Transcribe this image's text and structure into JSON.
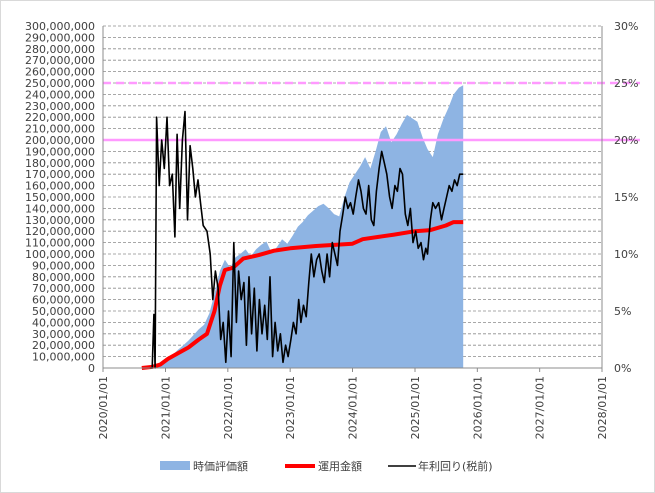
{
  "chart_data": {
    "type": "area",
    "colors": {
      "market_value": "#8eb4e3",
      "invested": "#ff0000",
      "annual_yield": "#000000",
      "reference": "#ff99ff",
      "grid": "#8c8c8c"
    },
    "x_axis": {
      "type": "date",
      "range": [
        "2020-01-01",
        "2028-01-01"
      ],
      "ticks": [
        "2020/01/01",
        "2021/01/01",
        "2022/01/01",
        "2023/01/01",
        "2024/01/01",
        "2025/01/01",
        "2026/01/01",
        "2027/01/01",
        "2028/01/01"
      ]
    },
    "y_left": {
      "range": [
        0,
        300000000
      ],
      "ticks": [
        "0",
        "10,000,000",
        "20,000,000",
        "30,000,000",
        "40,000,000",
        "50,000,000",
        "60,000,000",
        "70,000,000",
        "80,000,000",
        "90,000,000",
        "100,000,000",
        "110,000,000",
        "120,000,000",
        "130,000,000",
        "140,000,000",
        "150,000,000",
        "160,000,000",
        "170,000,000",
        "180,000,000",
        "190,000,000",
        "200,000,000",
        "210,000,000",
        "220,000,000",
        "230,000,000",
        "240,000,000",
        "250,000,000",
        "260,000,000",
        "270,000,000",
        "280,000,000",
        "290,000,000",
        "300,000,000"
      ]
    },
    "y_right": {
      "range": [
        0,
        30
      ],
      "ticks": [
        "0%",
        "5%",
        "10%",
        "15%",
        "20%",
        "25%",
        "30%"
      ]
    },
    "grid": "dashed horizontal",
    "legend_position": "bottom",
    "reference_lines": [
      {
        "axis": "right",
        "value": 25,
        "style": "dashed"
      },
      {
        "axis": "right",
        "value": 20,
        "style": "solid"
      }
    ],
    "series": [
      {
        "name": "時価評価額",
        "kind": "area",
        "axis": "left",
        "points": [
          [
            "2020-09-15",
            0
          ],
          [
            "2020-10-15",
            1000000
          ],
          [
            "2020-11-15",
            3000000
          ],
          [
            "2020-12-15",
            6000000
          ],
          [
            "2021-01-15",
            9000000
          ],
          [
            "2021-02-15",
            12000000
          ],
          [
            "2021-03-15",
            16000000
          ],
          [
            "2021-04-15",
            20000000
          ],
          [
            "2021-05-15",
            24000000
          ],
          [
            "2021-06-15",
            29000000
          ],
          [
            "2021-07-15",
            34000000
          ],
          [
            "2021-08-15",
            38000000
          ],
          [
            "2021-09-15",
            48000000
          ],
          [
            "2021-10-15",
            65000000
          ],
          [
            "2021-11-15",
            85000000
          ],
          [
            "2021-12-15",
            95000000
          ],
          [
            "2022-01-15",
            88000000
          ],
          [
            "2022-02-15",
            97000000
          ],
          [
            "2022-03-15",
            100000000
          ],
          [
            "2022-04-15",
            104000000
          ],
          [
            "2022-05-15",
            98000000
          ],
          [
            "2022-06-15",
            104000000
          ],
          [
            "2022-07-15",
            108000000
          ],
          [
            "2022-08-15",
            111000000
          ],
          [
            "2022-09-15",
            101000000
          ],
          [
            "2022-10-15",
            106000000
          ],
          [
            "2022-11-15",
            113000000
          ],
          [
            "2022-12-15",
            109000000
          ],
          [
            "2023-01-15",
            116000000
          ],
          [
            "2023-02-15",
            124000000
          ],
          [
            "2023-03-15",
            128000000
          ],
          [
            "2023-04-15",
            134000000
          ],
          [
            "2023-05-15",
            138000000
          ],
          [
            "2023-06-15",
            142000000
          ],
          [
            "2023-07-15",
            144000000
          ],
          [
            "2023-08-15",
            140000000
          ],
          [
            "2023-09-15",
            135000000
          ],
          [
            "2023-10-15",
            133000000
          ],
          [
            "2023-11-15",
            150000000
          ],
          [
            "2023-12-15",
            163000000
          ],
          [
            "2024-01-15",
            170000000
          ],
          [
            "2024-02-15",
            177000000
          ],
          [
            "2024-03-15",
            185000000
          ],
          [
            "2024-04-15",
            175000000
          ],
          [
            "2024-05-15",
            190000000
          ],
          [
            "2024-06-15",
            207000000
          ],
          [
            "2024-07-15",
            212000000
          ],
          [
            "2024-08-15",
            198000000
          ],
          [
            "2024-09-15",
            205000000
          ],
          [
            "2024-10-15",
            214000000
          ],
          [
            "2024-11-15",
            222000000
          ],
          [
            "2024-12-15",
            219000000
          ],
          [
            "2025-01-15",
            216000000
          ],
          [
            "2025-02-15",
            202000000
          ],
          [
            "2025-03-15",
            192000000
          ],
          [
            "2025-04-15",
            185000000
          ],
          [
            "2025-05-15",
            205000000
          ],
          [
            "2025-06-15",
            218000000
          ],
          [
            "2025-07-15",
            228000000
          ],
          [
            "2025-08-15",
            240000000
          ],
          [
            "2025-09-15",
            246000000
          ],
          [
            "2025-10-10",
            248000000
          ]
        ]
      },
      {
        "name": "運用金額",
        "kind": "line",
        "axis": "left",
        "points": [
          [
            "2020-08-15",
            0
          ],
          [
            "2020-10-15",
            1000000
          ],
          [
            "2020-12-01",
            3000000
          ],
          [
            "2021-01-15",
            8000000
          ],
          [
            "2021-03-15",
            13000000
          ],
          [
            "2021-05-15",
            18000000
          ],
          [
            "2021-07-15",
            25000000
          ],
          [
            "2021-09-01",
            30000000
          ],
          [
            "2021-10-15",
            50000000
          ],
          [
            "2021-11-15",
            72000000
          ],
          [
            "2021-12-15",
            86000000
          ],
          [
            "2022-02-01",
            88000000
          ],
          [
            "2022-04-01",
            96000000
          ],
          [
            "2022-07-01",
            99000000
          ],
          [
            "2022-10-01",
            103000000
          ],
          [
            "2023-01-01",
            105000000
          ],
          [
            "2023-06-01",
            107000000
          ],
          [
            "2024-01-01",
            109000000
          ],
          [
            "2024-03-01",
            113000000
          ],
          [
            "2024-06-01",
            115000000
          ],
          [
            "2024-09-01",
            117000000
          ],
          [
            "2025-01-01",
            120000000
          ],
          [
            "2025-04-01",
            121000000
          ],
          [
            "2025-07-01",
            125000000
          ],
          [
            "2025-08-15",
            128000000
          ],
          [
            "2025-10-10",
            128000000
          ]
        ]
      },
      {
        "name": "年利回り(税前)",
        "kind": "line",
        "axis": "right",
        "points": [
          [
            "2020-10-01",
            0
          ],
          [
            "2020-10-15",
            0
          ],
          [
            "2020-10-25",
            4.7
          ],
          [
            "2020-11-01",
            0
          ],
          [
            "2020-11-10",
            22
          ],
          [
            "2020-11-25",
            16
          ],
          [
            "2020-12-10",
            20
          ],
          [
            "2020-12-25",
            17.5
          ],
          [
            "2021-01-10",
            22
          ],
          [
            "2021-01-25",
            16
          ],
          [
            "2021-02-10",
            17
          ],
          [
            "2021-02-25",
            11.5
          ],
          [
            "2021-03-10",
            20.5
          ],
          [
            "2021-03-25",
            14
          ],
          [
            "2021-04-10",
            20
          ],
          [
            "2021-04-25",
            22.5
          ],
          [
            "2021-05-10",
            13
          ],
          [
            "2021-05-25",
            19.5
          ],
          [
            "2021-06-10",
            17.5
          ],
          [
            "2021-06-25",
            15
          ],
          [
            "2021-07-10",
            16.5
          ],
          [
            "2021-07-25",
            14.5
          ],
          [
            "2021-08-10",
            12.5
          ],
          [
            "2021-09-01",
            12
          ],
          [
            "2021-09-20",
            10
          ],
          [
            "2021-10-05",
            6
          ],
          [
            "2021-10-20",
            8.5
          ],
          [
            "2021-11-05",
            7
          ],
          [
            "2021-11-20",
            2.5
          ],
          [
            "2021-12-05",
            4
          ],
          [
            "2021-12-20",
            0.5
          ],
          [
            "2022-01-05",
            5
          ],
          [
            "2022-01-20",
            1
          ],
          [
            "2022-02-05",
            11
          ],
          [
            "2022-02-20",
            4
          ],
          [
            "2022-03-05",
            8.5
          ],
          [
            "2022-03-20",
            6
          ],
          [
            "2022-04-05",
            7.5
          ],
          [
            "2022-04-20",
            2
          ],
          [
            "2022-05-05",
            8
          ],
          [
            "2022-05-20",
            3
          ],
          [
            "2022-06-05",
            7
          ],
          [
            "2022-06-20",
            1.5
          ],
          [
            "2022-07-05",
            6
          ],
          [
            "2022-07-20",
            3
          ],
          [
            "2022-08-05",
            5.5
          ],
          [
            "2022-08-20",
            2.5
          ],
          [
            "2022-09-05",
            8
          ],
          [
            "2022-09-20",
            1
          ],
          [
            "2022-10-05",
            4
          ],
          [
            "2022-10-20",
            1.5
          ],
          [
            "2022-11-05",
            3
          ],
          [
            "2022-11-20",
            0.5
          ],
          [
            "2022-12-05",
            2
          ],
          [
            "2022-12-20",
            1
          ],
          [
            "2023-01-05",
            2.5
          ],
          [
            "2023-01-20",
            4
          ],
          [
            "2023-02-05",
            3
          ],
          [
            "2023-02-20",
            6
          ],
          [
            "2023-03-05",
            4
          ],
          [
            "2023-03-20",
            5.5
          ],
          [
            "2023-04-05",
            4.5
          ],
          [
            "2023-04-20",
            7.5
          ],
          [
            "2023-05-05",
            10
          ],
          [
            "2023-05-20",
            8
          ],
          [
            "2023-06-05",
            9.5
          ],
          [
            "2023-06-20",
            10
          ],
          [
            "2023-07-05",
            8.5
          ],
          [
            "2023-07-20",
            7.5
          ],
          [
            "2023-08-05",
            10
          ],
          [
            "2023-08-20",
            8
          ],
          [
            "2023-09-05",
            11
          ],
          [
            "2023-09-20",
            10
          ],
          [
            "2023-10-05",
            9
          ],
          [
            "2023-10-20",
            12
          ],
          [
            "2023-11-05",
            13.5
          ],
          [
            "2023-11-20",
            15
          ],
          [
            "2023-12-05",
            14
          ],
          [
            "2023-12-20",
            14.5
          ],
          [
            "2024-01-05",
            13.5
          ],
          [
            "2024-01-20",
            15
          ],
          [
            "2024-02-05",
            16.5
          ],
          [
            "2024-02-20",
            15.5
          ],
          [
            "2024-03-05",
            14
          ],
          [
            "2024-03-20",
            13.5
          ],
          [
            "2024-04-05",
            16
          ],
          [
            "2024-04-20",
            13
          ],
          [
            "2024-05-05",
            12.5
          ],
          [
            "2024-05-20",
            15.5
          ],
          [
            "2024-06-05",
            17.5
          ],
          [
            "2024-06-20",
            19
          ],
          [
            "2024-07-05",
            18
          ],
          [
            "2024-07-20",
            17
          ],
          [
            "2024-08-05",
            15
          ],
          [
            "2024-08-20",
            14
          ],
          [
            "2024-09-05",
            16
          ],
          [
            "2024-09-20",
            15.5
          ],
          [
            "2024-10-05",
            17.5
          ],
          [
            "2024-10-20",
            17
          ],
          [
            "2024-11-05",
            13.5
          ],
          [
            "2024-11-20",
            12.5
          ],
          [
            "2024-12-05",
            14
          ],
          [
            "2024-12-20",
            11
          ],
          [
            "2025-01-05",
            12
          ],
          [
            "2025-01-20",
            10.5
          ],
          [
            "2025-02-05",
            11
          ],
          [
            "2025-02-20",
            9.5
          ],
          [
            "2025-03-05",
            10.5
          ],
          [
            "2025-03-15",
            10
          ],
          [
            "2025-04-01",
            13
          ],
          [
            "2025-04-15",
            14.5
          ],
          [
            "2025-05-01",
            14
          ],
          [
            "2025-05-20",
            14.5
          ],
          [
            "2025-06-05",
            13
          ],
          [
            "2025-06-20",
            14
          ],
          [
            "2025-07-05",
            15
          ],
          [
            "2025-07-20",
            16
          ],
          [
            "2025-08-05",
            15.5
          ],
          [
            "2025-08-20",
            16.5
          ],
          [
            "2025-09-05",
            16
          ],
          [
            "2025-09-20",
            17
          ],
          [
            "2025-10-10",
            17
          ]
        ]
      }
    ]
  }
}
